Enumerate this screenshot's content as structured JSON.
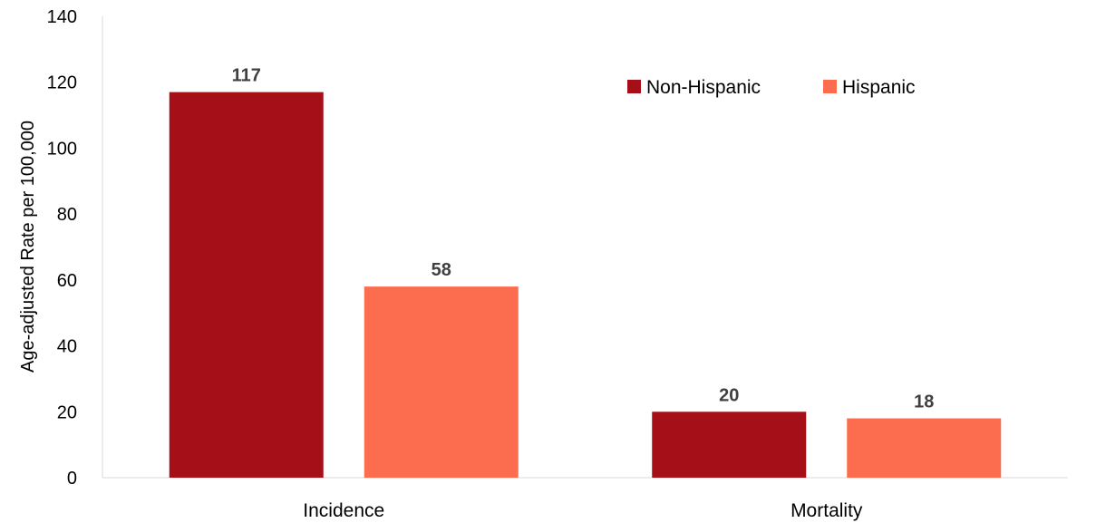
{
  "chart_data": {
    "type": "bar",
    "title": "",
    "xlabel": "",
    "ylabel": "Age-adjusted Rate per 100,000",
    "categories": [
      "Incidence",
      "Mortality"
    ],
    "ylim": [
      0,
      140
    ],
    "yticks": [
      0,
      20,
      40,
      60,
      80,
      100,
      120,
      140
    ],
    "grid": false,
    "legend_position": "top-right",
    "series": [
      {
        "name": "Non-Hispanic",
        "color": "#A51018",
        "values": [
          117,
          20
        ],
        "labels": [
          "117",
          "20"
        ]
      },
      {
        "name": "Hispanic",
        "color": "#FB6D4E",
        "values": [
          58,
          18
        ],
        "labels": [
          "58",
          "18"
        ]
      }
    ]
  }
}
